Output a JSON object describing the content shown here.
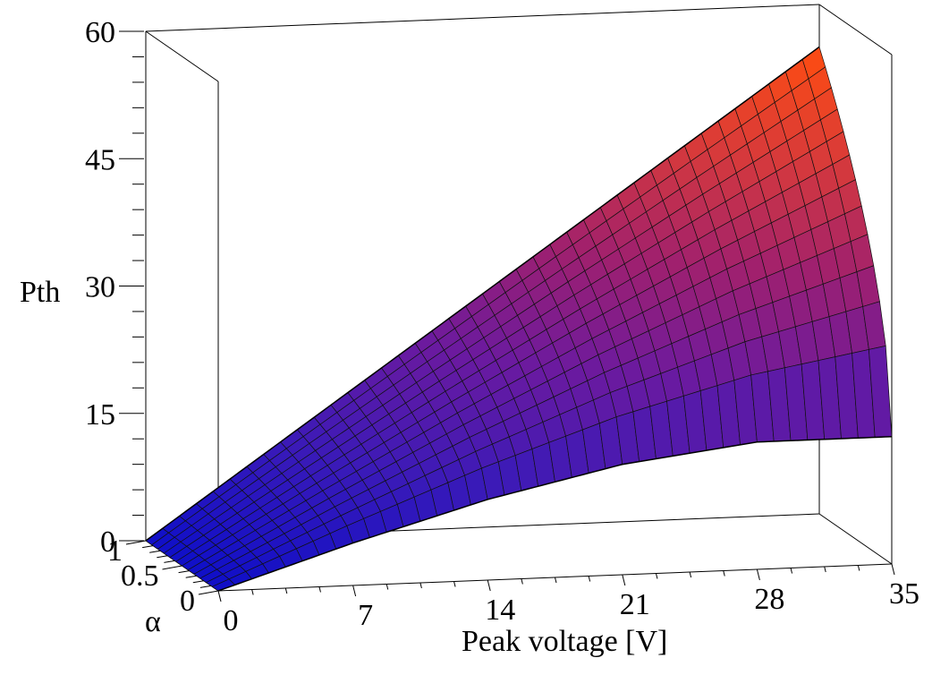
{
  "chart_data": {
    "type": "surface",
    "title": "",
    "xlabel": "Peak voltage [V]",
    "ylabel": "α",
    "zlabel": "Pth",
    "xlim": [
      0,
      35
    ],
    "ylim": [
      0,
      1
    ],
    "zlim": [
      0,
      60
    ],
    "x_ticks": [
      "0",
      "7",
      "14",
      "21",
      "28",
      "35"
    ],
    "y_ticks": [
      "0",
      "0.5",
      "1"
    ],
    "z_ticks": [
      "0",
      "15",
      "30",
      "45",
      "60"
    ],
    "x_tick_values": [
      0,
      7,
      14,
      21,
      28,
      35
    ],
    "y_tick_values": [
      0,
      0.5,
      1
    ],
    "z_tick_values": [
      0,
      15,
      30,
      45,
      60
    ],
    "surface": {
      "corners": [
        {
          "x": 0,
          "y": 0,
          "z": 0
        },
        {
          "x": 0,
          "y": 1,
          "z": 0
        },
        {
          "x": 35,
          "y": 0,
          "z": 15
        },
        {
          "x": 35,
          "y": 1,
          "z": 55
        }
      ],
      "front_edge_y0": {
        "x": [
          0,
          7,
          14,
          21,
          28,
          35
        ],
        "z": [
          0,
          5,
          9.5,
          13,
          15,
          15
        ]
      },
      "back_edge_y1": {
        "x": [
          0,
          7,
          14,
          21,
          28,
          35
        ],
        "z": [
          0,
          11,
          22,
          33,
          44,
          55
        ]
      },
      "colormap": [
        "#0f0fc8",
        "#3a1ab8",
        "#6a1aa0",
        "#a0206e",
        "#d83a3a",
        "#ff4d10"
      ]
    }
  }
}
